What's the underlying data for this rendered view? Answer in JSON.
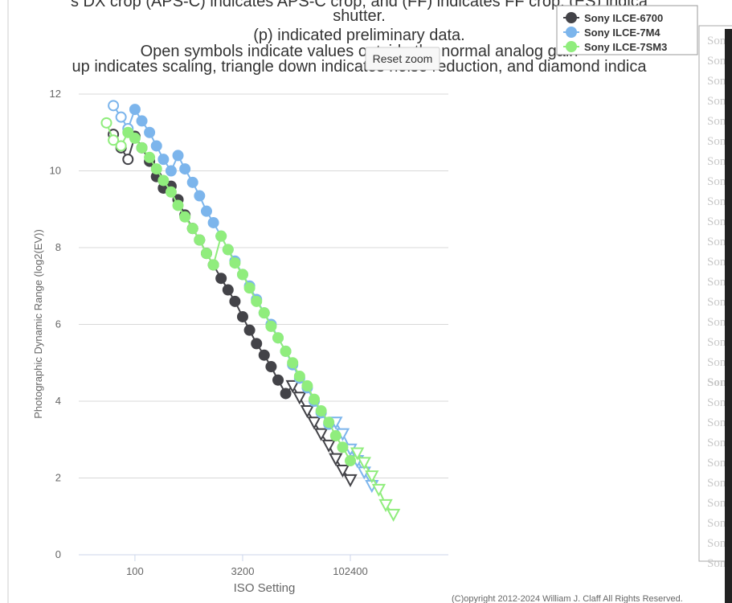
{
  "header": {
    "title_lines": [
      "s DX crop (APS-C) indicates APS-C crop, and (FF) indicates FF crop. (ES) indica",
      "shutter.",
      "(p) indicated preliminary data.",
      "Open symbols indicate values outside the normal analog gain",
      "up indicates scaling, triangle down indicates noise reduction, and diamond indica"
    ],
    "reset_button": "Reset zoom"
  },
  "chart_data": {
    "type": "line",
    "y_label": "Photographic Dynamic Range (log2(EV))",
    "x_label": "ISO Setting",
    "x_log": true,
    "xlim": [
      16.4,
      2400000
    ],
    "xticks": [
      100,
      3200,
      102400
    ],
    "ylim": [
      0,
      12
    ],
    "yticks": [
      0,
      2,
      4,
      6,
      8,
      10,
      12
    ],
    "grid": true,
    "series": [
      {
        "name": "Sony ILCE-6700",
        "color": "#434348",
        "x": [
          50,
          64,
          80,
          100,
          125,
          160,
          200,
          250,
          320,
          400,
          500,
          640,
          800,
          1000,
          1250,
          1600,
          2000,
          2500,
          3200,
          4000,
          5000,
          6400,
          8000,
          10000,
          12800,
          16000,
          20000,
          25600,
          32000,
          40000,
          51200,
          64000,
          80000,
          102400
        ],
        "values": [
          10.95,
          10.6,
          10.3,
          10.9,
          10.6,
          10.25,
          9.85,
          9.55,
          9.6,
          9.25,
          8.85,
          8.5,
          8.2,
          7.85,
          7.55,
          7.2,
          6.9,
          6.6,
          6.2,
          5.85,
          5.5,
          5.2,
          4.9,
          4.55,
          4.2,
          4.4,
          4.1,
          3.75,
          3.45,
          3.15,
          2.85,
          2.5,
          2.2,
          1.95
        ],
        "markers": [
          "open-circle",
          "open-circle",
          "open-circle",
          "circle",
          "circle",
          "circle",
          "circle",
          "circle",
          "circle",
          "circle",
          "circle",
          "circle",
          "circle",
          "circle",
          "circle",
          "circle",
          "circle",
          "circle",
          "circle",
          "circle",
          "circle",
          "circle",
          "circle",
          "circle",
          "circle",
          "open-triangle-down",
          "open-triangle-down",
          "open-triangle-down",
          "open-triangle-down",
          "open-triangle-down",
          "open-triangle-down",
          "open-triangle-down",
          "open-triangle-down",
          "open-triangle-down"
        ]
      },
      {
        "name": "Sony ILCE-7M4",
        "color": "#7cb5ec",
        "x": [
          50,
          64,
          80,
          100,
          125,
          160,
          200,
          250,
          320,
          400,
          500,
          640,
          800,
          1000,
          1250,
          1600,
          2000,
          2500,
          3200,
          4000,
          5000,
          6400,
          8000,
          10000,
          12800,
          16000,
          20000,
          25600,
          32000,
          40000,
          51200,
          64000,
          80000,
          102400,
          128000,
          160000,
          204800
        ],
        "values": [
          11.7,
          11.4,
          11.1,
          11.6,
          11.3,
          11.0,
          10.65,
          10.3,
          10.0,
          10.4,
          10.05,
          9.7,
          9.35,
          8.95,
          8.65,
          8.3,
          7.95,
          7.65,
          7.3,
          7.0,
          6.65,
          6.3,
          6.0,
          5.65,
          5.3,
          4.95,
          4.6,
          4.35,
          4.0,
          3.7,
          3.4,
          3.45,
          3.15,
          2.75,
          2.45,
          2.15,
          1.8
        ],
        "markers": [
          "open-circle",
          "open-circle",
          "open-circle",
          "circle",
          "circle",
          "circle",
          "circle",
          "circle",
          "circle",
          "circle",
          "circle",
          "circle",
          "circle",
          "circle",
          "circle",
          "circle",
          "circle",
          "circle",
          "circle",
          "circle",
          "circle",
          "circle",
          "circle",
          "circle",
          "circle",
          "circle",
          "circle",
          "circle",
          "circle",
          "circle",
          "circle",
          "open-triangle-down",
          "open-triangle-down",
          "open-triangle-down",
          "open-triangle-down",
          "open-triangle-down",
          "open-triangle-down"
        ]
      },
      {
        "name": "Sony ILCE-7SM3",
        "color": "#90ed7d",
        "x": [
          40,
          50,
          64,
          80,
          100,
          125,
          160,
          200,
          250,
          320,
          400,
          500,
          640,
          800,
          1000,
          1250,
          1600,
          2000,
          2500,
          3200,
          4000,
          5000,
          6400,
          8000,
          10000,
          12800,
          16000,
          20000,
          25600,
          32000,
          40000,
          51200,
          64000,
          80000,
          102400,
          128000,
          160000,
          204800,
          256000,
          320000,
          409600
        ],
        "values": [
          11.25,
          10.8,
          10.65,
          11.0,
          10.85,
          10.6,
          10.35,
          10.05,
          9.75,
          9.45,
          9.1,
          8.8,
          8.5,
          8.2,
          7.85,
          7.55,
          8.3,
          7.95,
          7.6,
          7.3,
          6.95,
          6.6,
          6.3,
          5.95,
          5.65,
          5.3,
          5.0,
          4.65,
          4.4,
          4.05,
          3.75,
          3.45,
          3.1,
          2.8,
          2.45,
          2.65,
          2.4,
          2.05,
          1.7,
          1.3,
          1.05
        ],
        "markers": [
          "open-circle",
          "open-circle",
          "open-circle",
          "circle",
          "circle",
          "circle",
          "circle",
          "circle",
          "circle",
          "circle",
          "circle",
          "circle",
          "circle",
          "circle",
          "circle",
          "circle",
          "circle",
          "circle",
          "circle",
          "circle",
          "circle",
          "circle",
          "circle",
          "circle",
          "circle",
          "circle",
          "circle",
          "circle",
          "circle",
          "circle",
          "circle",
          "circle",
          "circle",
          "circle",
          "circle",
          "open-triangle-down",
          "open-triangle-down",
          "open-triangle-down",
          "open-triangle-down",
          "open-triangle-down",
          "open-triangle-down"
        ]
      }
    ]
  },
  "sidebar": {
    "items": [
      "Sony",
      "Sony",
      "Sony",
      "Sony",
      "Sony",
      "Sony",
      "Sony",
      "Sony",
      "Sony",
      "Sony",
      "Sony",
      "Sony",
      "Sony",
      "Sony",
      "Sony",
      "Sony",
      "Sony",
      "Sony",
      "Sony",
      "Sony",
      "Sony",
      "Sony",
      "Sony",
      "Sony",
      "Sony",
      "Sony",
      "Sony"
    ],
    "selected": 17
  },
  "footer": {
    "copyright": "(C)opyright 2012-2024 William J. Claff All Rights Reserved."
  }
}
